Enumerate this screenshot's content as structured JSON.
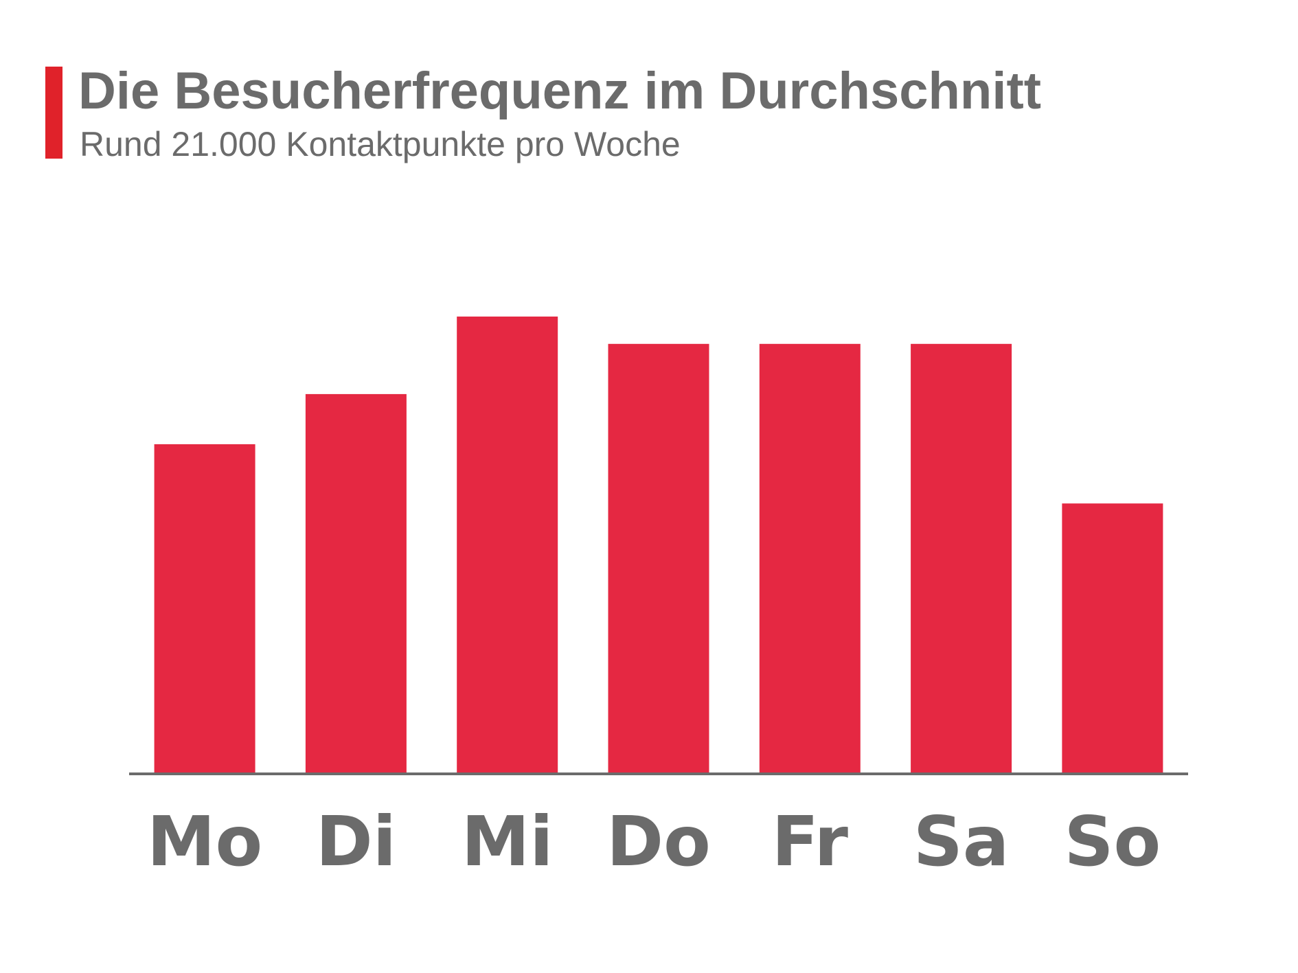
{
  "header": {
    "title": "Die Besucherfrequenz im Durchschnitt",
    "subtitle": "Rund 21.000 Kontaktpunkte pro Woche"
  },
  "colors": {
    "accent": "#e0222a",
    "bar": "#e52842",
    "text": "#6b6b6b",
    "axis": "#6b6b6b"
  },
  "chart_data": {
    "type": "bar",
    "title": "Die Besucherfrequenz im Durchschnitt",
    "subtitle": "Rund 21.000 Kontaktpunkte pro Woche",
    "categories": [
      "Mo",
      "Di",
      "Mi",
      "Do",
      "Fr",
      "Sa",
      "So"
    ],
    "values": [
      72,
      83,
      100,
      94,
      94,
      94,
      59
    ],
    "xlabel": "",
    "ylabel": "",
    "ylim": [
      0,
      100
    ],
    "grid": false,
    "legend": "none",
    "y_axis_shown": false
  }
}
